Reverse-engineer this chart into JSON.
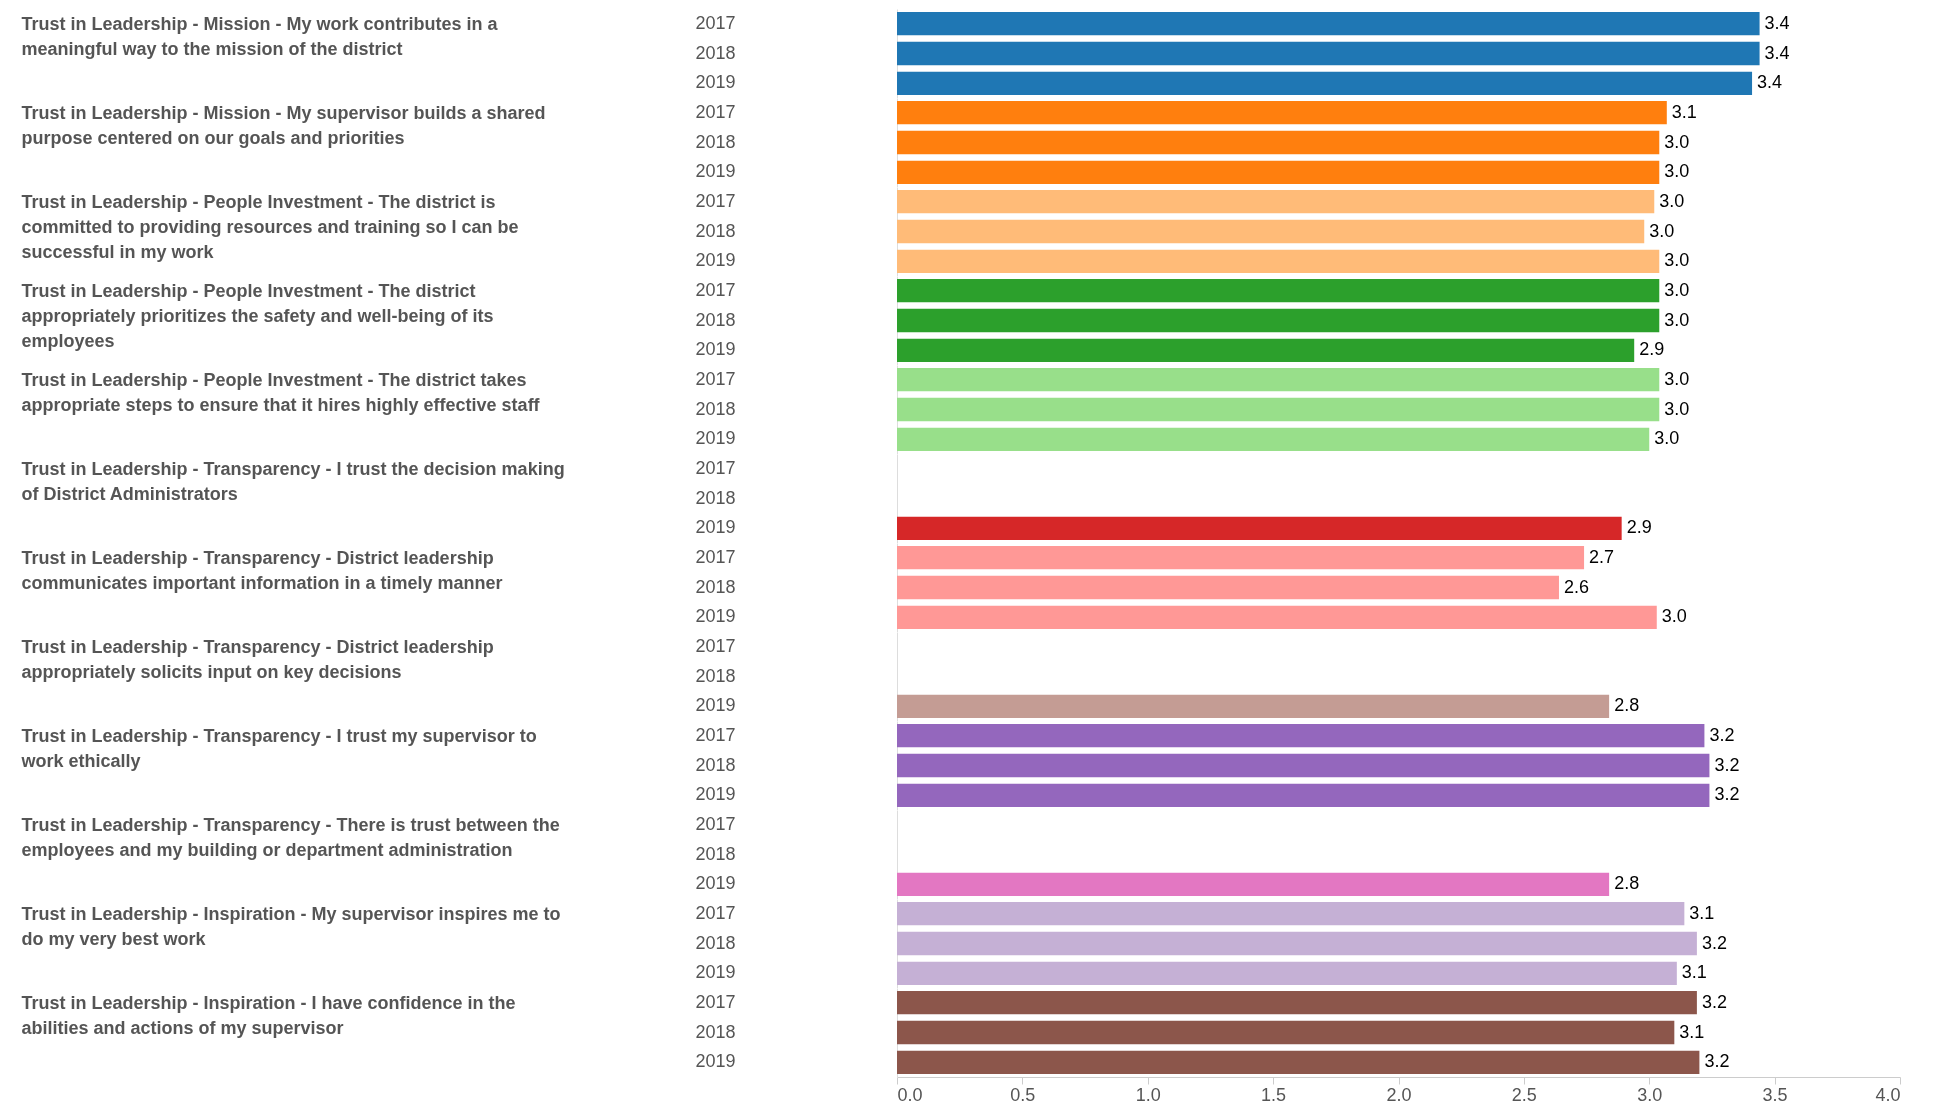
{
  "chart_data": [
    {
      "type": "bar",
      "orientation": "horizontal",
      "ylabel": "Trust in Leadership - Mission - My work contributes in a meaningful way to the mission of the district",
      "categories": [
        "2017",
        "2018",
        "2019"
      ],
      "values": [
        3.44,
        3.44,
        3.41
      ],
      "value_labels": [
        "3.4",
        "3.4",
        "3.4"
      ],
      "color": "#1f77b4",
      "xlim": [
        0,
        4
      ],
      "tick_labels": "y"
    },
    {
      "type": "bar",
      "orientation": "horizontal",
      "ylabel": "Trust in Leadership - Mission - My supervisor builds a shared purpose centered on our goals and priorities",
      "categories": [
        "2017",
        "2018",
        "2019"
      ],
      "values": [
        3.07,
        3.04,
        3.04
      ],
      "value_labels": [
        "3.1",
        "3.0",
        "3.0"
      ],
      "color": "#ff7f0e",
      "xlim": [
        0,
        4
      ],
      "tick_labels": "y"
    },
    {
      "type": "bar",
      "orientation": "horizontal",
      "ylabel": "Trust in Leadership - People Investment - The district is committed to providing resources and training so I can be successful in my work",
      "categories": [
        "2017",
        "2018",
        "2019"
      ],
      "values": [
        3.02,
        2.98,
        3.04
      ],
      "value_labels": [
        "3.0",
        "3.0",
        "3.0"
      ],
      "color": "#ffbb78",
      "xlim": [
        0,
        4
      ],
      "tick_labels": "y"
    },
    {
      "type": "bar",
      "orientation": "horizontal",
      "ylabel": "Trust in Leadership - People Investment - The district appropriately prioritizes the safety and well-being of its employees",
      "categories": [
        "2017",
        "2018",
        "2019"
      ],
      "values": [
        3.04,
        3.04,
        2.94
      ],
      "value_labels": [
        "3.0",
        "3.0",
        "2.9"
      ],
      "color": "#2ca02c",
      "xlim": [
        0,
        4
      ],
      "tick_labels": "y"
    },
    {
      "type": "bar",
      "orientation": "horizontal",
      "ylabel": "Trust in Leadership - People Investment - The district takes appropriate steps to ensure that it hires highly effective staff",
      "categories": [
        "2017",
        "2018",
        "2019"
      ],
      "values": [
        3.04,
        3.04,
        3.0
      ],
      "value_labels": [
        "3.0",
        "3.0",
        "3.0"
      ],
      "color": "#98df8a",
      "xlim": [
        0,
        4
      ],
      "tick_labels": "y"
    },
    {
      "type": "bar",
      "orientation": "horizontal",
      "ylabel": "Trust in Leadership - Transparency - I trust the decision making of District Administrators",
      "categories": [
        "2017",
        "2018",
        "2019"
      ],
      "values": [
        null,
        null,
        2.89
      ],
      "value_labels": [
        null,
        null,
        "2.9"
      ],
      "color": "#d62728",
      "xlim": [
        0,
        4
      ],
      "tick_labels": "y"
    },
    {
      "type": "bar",
      "orientation": "horizontal",
      "ylabel": "Trust in Leadership - Transparency - District leadership communicates important information in a timely manner",
      "categories": [
        "2017",
        "2018",
        "2019"
      ],
      "values": [
        2.74,
        2.64,
        3.03
      ],
      "value_labels": [
        "2.7",
        "2.6",
        "3.0"
      ],
      "color": "#ff9896",
      "xlim": [
        0,
        4
      ],
      "tick_labels": "y"
    },
    {
      "type": "bar",
      "orientation": "horizontal",
      "ylabel": "Trust in Leadership - Transparency - District leadership appropriately solicits input on key decisions",
      "categories": [
        "2017",
        "2018",
        "2019"
      ],
      "values": [
        null,
        null,
        2.84
      ],
      "value_labels": [
        null,
        null,
        "2.8"
      ],
      "color": "#c49c94",
      "xlim": [
        0,
        4
      ],
      "tick_labels": "y"
    },
    {
      "type": "bar",
      "orientation": "horizontal",
      "ylabel": "Trust in Leadership - Transparency - I trust my supervisor to work ethically",
      "categories": [
        "2017",
        "2018",
        "2019"
      ],
      "values": [
        3.22,
        3.24,
        3.24
      ],
      "value_labels": [
        "3.2",
        "3.2",
        "3.2"
      ],
      "color": "#9467bd",
      "xlim": [
        0,
        4
      ],
      "tick_labels": "y"
    },
    {
      "type": "bar",
      "orientation": "horizontal",
      "ylabel": "Trust in Leadership - Transparency - There is trust between the employees and my building or department administration",
      "categories": [
        "2017",
        "2018",
        "2019"
      ],
      "values": [
        null,
        null,
        2.84
      ],
      "value_labels": [
        null,
        null,
        "2.8"
      ],
      "color": "#e377c2",
      "xlim": [
        0,
        4
      ],
      "tick_labels": "y"
    },
    {
      "type": "bar",
      "orientation": "horizontal",
      "ylabel": "Trust in Leadership - Inspiration - My supervisor inspires me to do my very best work",
      "categories": [
        "2017",
        "2018",
        "2019"
      ],
      "values": [
        3.14,
        3.19,
        3.11
      ],
      "value_labels": [
        "3.1",
        "3.2",
        "3.1"
      ],
      "color": "#c5b0d5",
      "xlim": [
        0,
        4
      ],
      "tick_labels": "y"
    },
    {
      "type": "bar",
      "orientation": "horizontal",
      "ylabel": "Trust in Leadership - Inspiration - I have confidence in the abilities and actions of my supervisor",
      "categories": [
        "2017",
        "2018",
        "2019"
      ],
      "values": [
        3.19,
        3.1,
        3.2
      ],
      "value_labels": [
        "3.2",
        "3.1",
        "3.2"
      ],
      "color": "#8c564b",
      "xlim": [
        0,
        4
      ],
      "xticks": [
        {
          "value": 0,
          "label": "0.0"
        },
        {
          "value": 0.5,
          "label": "0.5"
        },
        {
          "value": 1,
          "label": "1.0"
        },
        {
          "value": 1.5,
          "label": "1.5"
        },
        {
          "value": 2,
          "label": "2.0"
        },
        {
          "value": 2.5,
          "label": "2.5"
        },
        {
          "value": 3,
          "label": "3.0"
        },
        {
          "value": 3.5,
          "label": "3.5"
        },
        {
          "value": 4,
          "label": "4.0"
        }
      ]
    }
  ]
}
